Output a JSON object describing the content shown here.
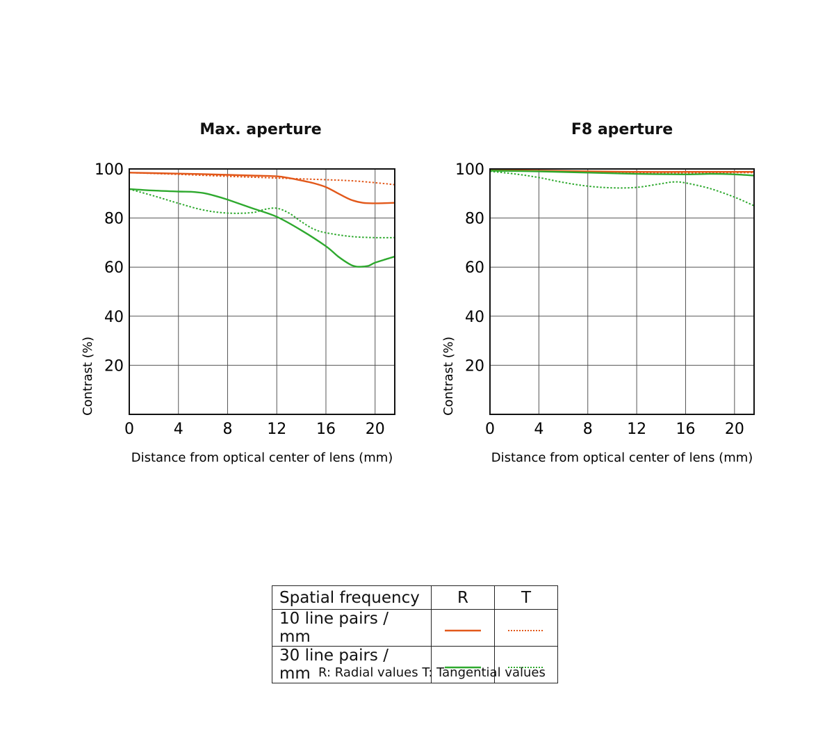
{
  "chart_data": [
    {
      "type": "line",
      "title": "Max. aperture",
      "xlabel": "Distance from optical center of lens (mm)",
      "ylabel": "Contrast (%)",
      "xlim": [
        0,
        21.6
      ],
      "ylim": [
        0,
        100
      ],
      "xticks": [
        "0",
        "4",
        "8",
        "12",
        "16",
        "20"
      ],
      "yticks": [
        "20",
        "40",
        "60",
        "80",
        "100"
      ],
      "grid": true,
      "series": [
        {
          "freq": "10",
          "kind": "R",
          "color": "#e2581a",
          "dashed": false,
          "x": [
            0,
            2,
            4,
            6,
            8,
            10,
            12,
            13,
            14,
            15,
            16,
            17,
            18,
            19,
            20,
            21,
            21.6
          ],
          "y": [
            98.5,
            98.3,
            98.1,
            97.9,
            97.6,
            97.3,
            97,
            96.3,
            95.3,
            94.2,
            92.6,
            90,
            87.5,
            86.2,
            86,
            86.1,
            86.2
          ]
        },
        {
          "freq": "10",
          "kind": "T",
          "color": "#e2581a",
          "dashed": true,
          "x": [
            0,
            4,
            8,
            12,
            16,
            18,
            20,
            21.6
          ],
          "y": [
            98.5,
            97.8,
            97,
            96.3,
            95.6,
            95.2,
            94.4,
            93.6
          ]
        },
        {
          "freq": "30",
          "kind": "R",
          "color": "#2ea92e",
          "dashed": false,
          "x": [
            0,
            2,
            4,
            5,
            6,
            7,
            8,
            10,
            12,
            14,
            16,
            17,
            18,
            18.5,
            19,
            19.5,
            20,
            21,
            21.6
          ],
          "y": [
            91.8,
            91.2,
            90.8,
            90.7,
            90.2,
            89,
            87.5,
            84,
            80.5,
            75,
            68.5,
            64.3,
            61,
            60.2,
            60.2,
            60.6,
            61.8,
            63.4,
            64.3
          ]
        },
        {
          "freq": "30",
          "kind": "T",
          "color": "#2ea92e",
          "dashed": true,
          "x": [
            0,
            2,
            4,
            6,
            8,
            10,
            11,
            12,
            13,
            14,
            15,
            16,
            18,
            20,
            21.6
          ],
          "y": [
            91.8,
            89,
            86,
            83.3,
            82,
            82.2,
            83.5,
            84,
            82,
            78.5,
            75.5,
            74,
            72.5,
            72,
            72
          ]
        }
      ]
    },
    {
      "type": "line",
      "title": "F8 aperture",
      "xlabel": "Distance from optical center of lens (mm)",
      "ylabel": "Contrast (%)",
      "xlim": [
        0,
        21.6
      ],
      "ylim": [
        0,
        100
      ],
      "xticks": [
        "0",
        "4",
        "8",
        "12",
        "16",
        "20"
      ],
      "yticks": [
        "20",
        "40",
        "60",
        "80",
        "100"
      ],
      "grid": true,
      "series": [
        {
          "freq": "10",
          "kind": "R",
          "color": "#e2581a",
          "dashed": false,
          "x": [
            0,
            4,
            8,
            12,
            16,
            20,
            21.6
          ],
          "y": [
            99.5,
            99.3,
            99,
            98.8,
            98.8,
            98.8,
            98.8
          ]
        },
        {
          "freq": "10",
          "kind": "T",
          "color": "#e2581a",
          "dashed": true,
          "x": [
            0,
            4,
            8,
            12,
            16,
            20,
            21.6
          ],
          "y": [
            99.5,
            99.2,
            98.8,
            98.4,
            98.3,
            98.5,
            98.5
          ]
        },
        {
          "freq": "30",
          "kind": "R",
          "color": "#2ea92e",
          "dashed": false,
          "x": [
            0,
            4,
            8,
            12,
            16,
            18,
            20,
            21.6
          ],
          "y": [
            99.3,
            99,
            98.5,
            98,
            97.8,
            98,
            97.8,
            97.3
          ]
        },
        {
          "freq": "30",
          "kind": "T",
          "color": "#2ea92e",
          "dashed": true,
          "x": [
            0,
            2,
            4,
            6,
            8,
            10,
            12,
            14,
            15,
            16,
            18,
            20,
            21.6
          ],
          "y": [
            99,
            98,
            96.5,
            94.5,
            93,
            92.3,
            92.5,
            94,
            94.7,
            94.3,
            92,
            88.5,
            85
          ]
        }
      ]
    }
  ],
  "legend": {
    "header": "Spatial frequency",
    "col_r": "R",
    "col_t": "T",
    "rows": [
      {
        "label": "10 line pairs / mm",
        "color": "#e2581a"
      },
      {
        "label": "30 line pairs / mm",
        "color": "#2ea92e"
      }
    ],
    "note": "R: Radial values  T: Tangential values"
  }
}
